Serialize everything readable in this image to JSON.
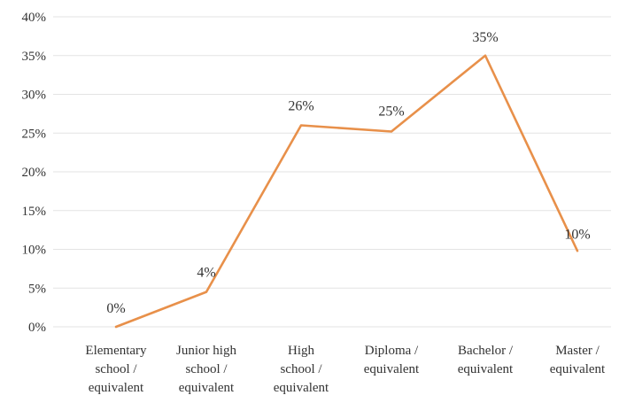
{
  "chart_data": {
    "type": "line",
    "categories": [
      [
        "Elementary",
        "school /",
        "equivalent"
      ],
      [
        "Junior high",
        "school /",
        "equivalent"
      ],
      [
        "High",
        "school /",
        "equivalent"
      ],
      [
        "Diploma /",
        "equivalent"
      ],
      [
        "Bachelor /",
        "equivalent"
      ],
      [
        "Master /",
        "equivalent"
      ]
    ],
    "values": [
      0,
      4.5,
      26,
      25.2,
      35,
      9.8
    ],
    "data_labels": [
      "0%",
      "4%",
      "26%",
      "25%",
      "35%",
      "10%"
    ],
    "y_ticks": [
      "0%",
      "5%",
      "10%",
      "15%",
      "20%",
      "25%",
      "30%",
      "35%",
      "40%"
    ],
    "ylim": [
      0,
      40
    ],
    "grid": true,
    "legend": "none",
    "line_color": "#E8904A",
    "grid_color": "#E3E3E3"
  }
}
